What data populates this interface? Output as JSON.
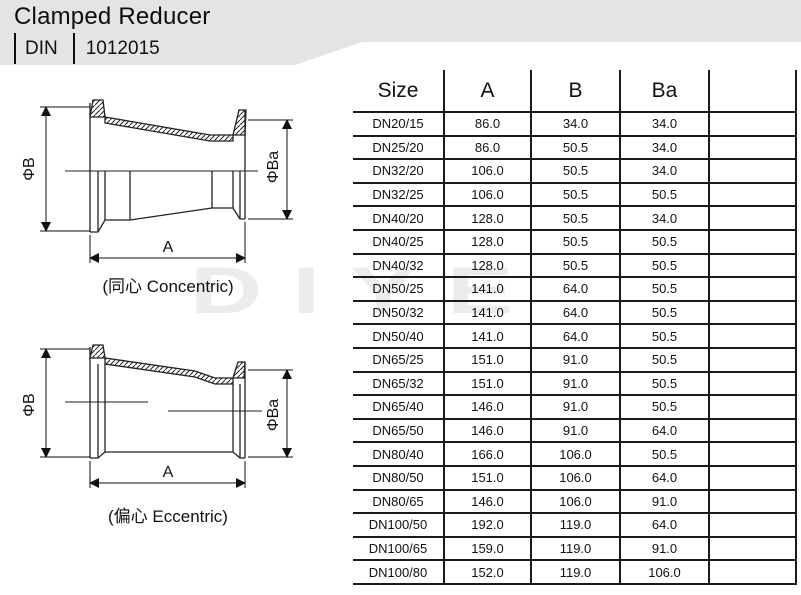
{
  "header": {
    "title": "Clamped Reducer",
    "standard": "DIN",
    "code": "1012015",
    "bg_color": "#e4e4e4"
  },
  "watermark": {
    "text": "DIYE",
    "color": "#ececec"
  },
  "drawings": {
    "concentric": {
      "caption": "(同心 Concentric)",
      "dia_large": "ΦB",
      "dia_small": "ΦBa",
      "length": "A"
    },
    "eccentric": {
      "caption": "(偏心 Eccentric)",
      "dia_large": "ΦB",
      "dia_small": "ΦBa",
      "length": "A"
    }
  },
  "table": {
    "columns": [
      "Size",
      "A",
      "B",
      "Ba",
      ""
    ],
    "rows": [
      [
        "DN20/15",
        "86.0",
        "34.0",
        "34.0",
        ""
      ],
      [
        "DN25/20",
        "86.0",
        "50.5",
        "34.0",
        ""
      ],
      [
        "DN32/20",
        "106.0",
        "50.5",
        "34.0",
        ""
      ],
      [
        "DN32/25",
        "106.0",
        "50.5",
        "50.5",
        ""
      ],
      [
        "DN40/20",
        "128.0",
        "50.5",
        "34.0",
        ""
      ],
      [
        "DN40/25",
        "128.0",
        "50.5",
        "50.5",
        ""
      ],
      [
        "DN40/32",
        "128.0",
        "50.5",
        "50.5",
        ""
      ],
      [
        "DN50/25",
        "141.0",
        "64.0",
        "50.5",
        ""
      ],
      [
        "DN50/32",
        "141.0",
        "64.0",
        "50.5",
        ""
      ],
      [
        "DN50/40",
        "141.0",
        "64.0",
        "50.5",
        ""
      ],
      [
        "DN65/25",
        "151.0",
        "91.0",
        "50.5",
        ""
      ],
      [
        "DN65/32",
        "151.0",
        "91.0",
        "50.5",
        ""
      ],
      [
        "DN65/40",
        "146.0",
        "91.0",
        "50.5",
        ""
      ],
      [
        "DN65/50",
        "146.0",
        "91.0",
        "64.0",
        ""
      ],
      [
        "DN80/40",
        "166.0",
        "106.0",
        "50.5",
        ""
      ],
      [
        "DN80/50",
        "151.0",
        "106.0",
        "64.0",
        ""
      ],
      [
        "DN80/65",
        "146.0",
        "106.0",
        "91.0",
        ""
      ],
      [
        "DN100/50",
        "192.0",
        "119.0",
        "64.0",
        ""
      ],
      [
        "DN100/65",
        "159.0",
        "119.0",
        "91.0",
        ""
      ],
      [
        "DN100/80",
        "152.0",
        "119.0",
        "106.0",
        ""
      ]
    ]
  }
}
